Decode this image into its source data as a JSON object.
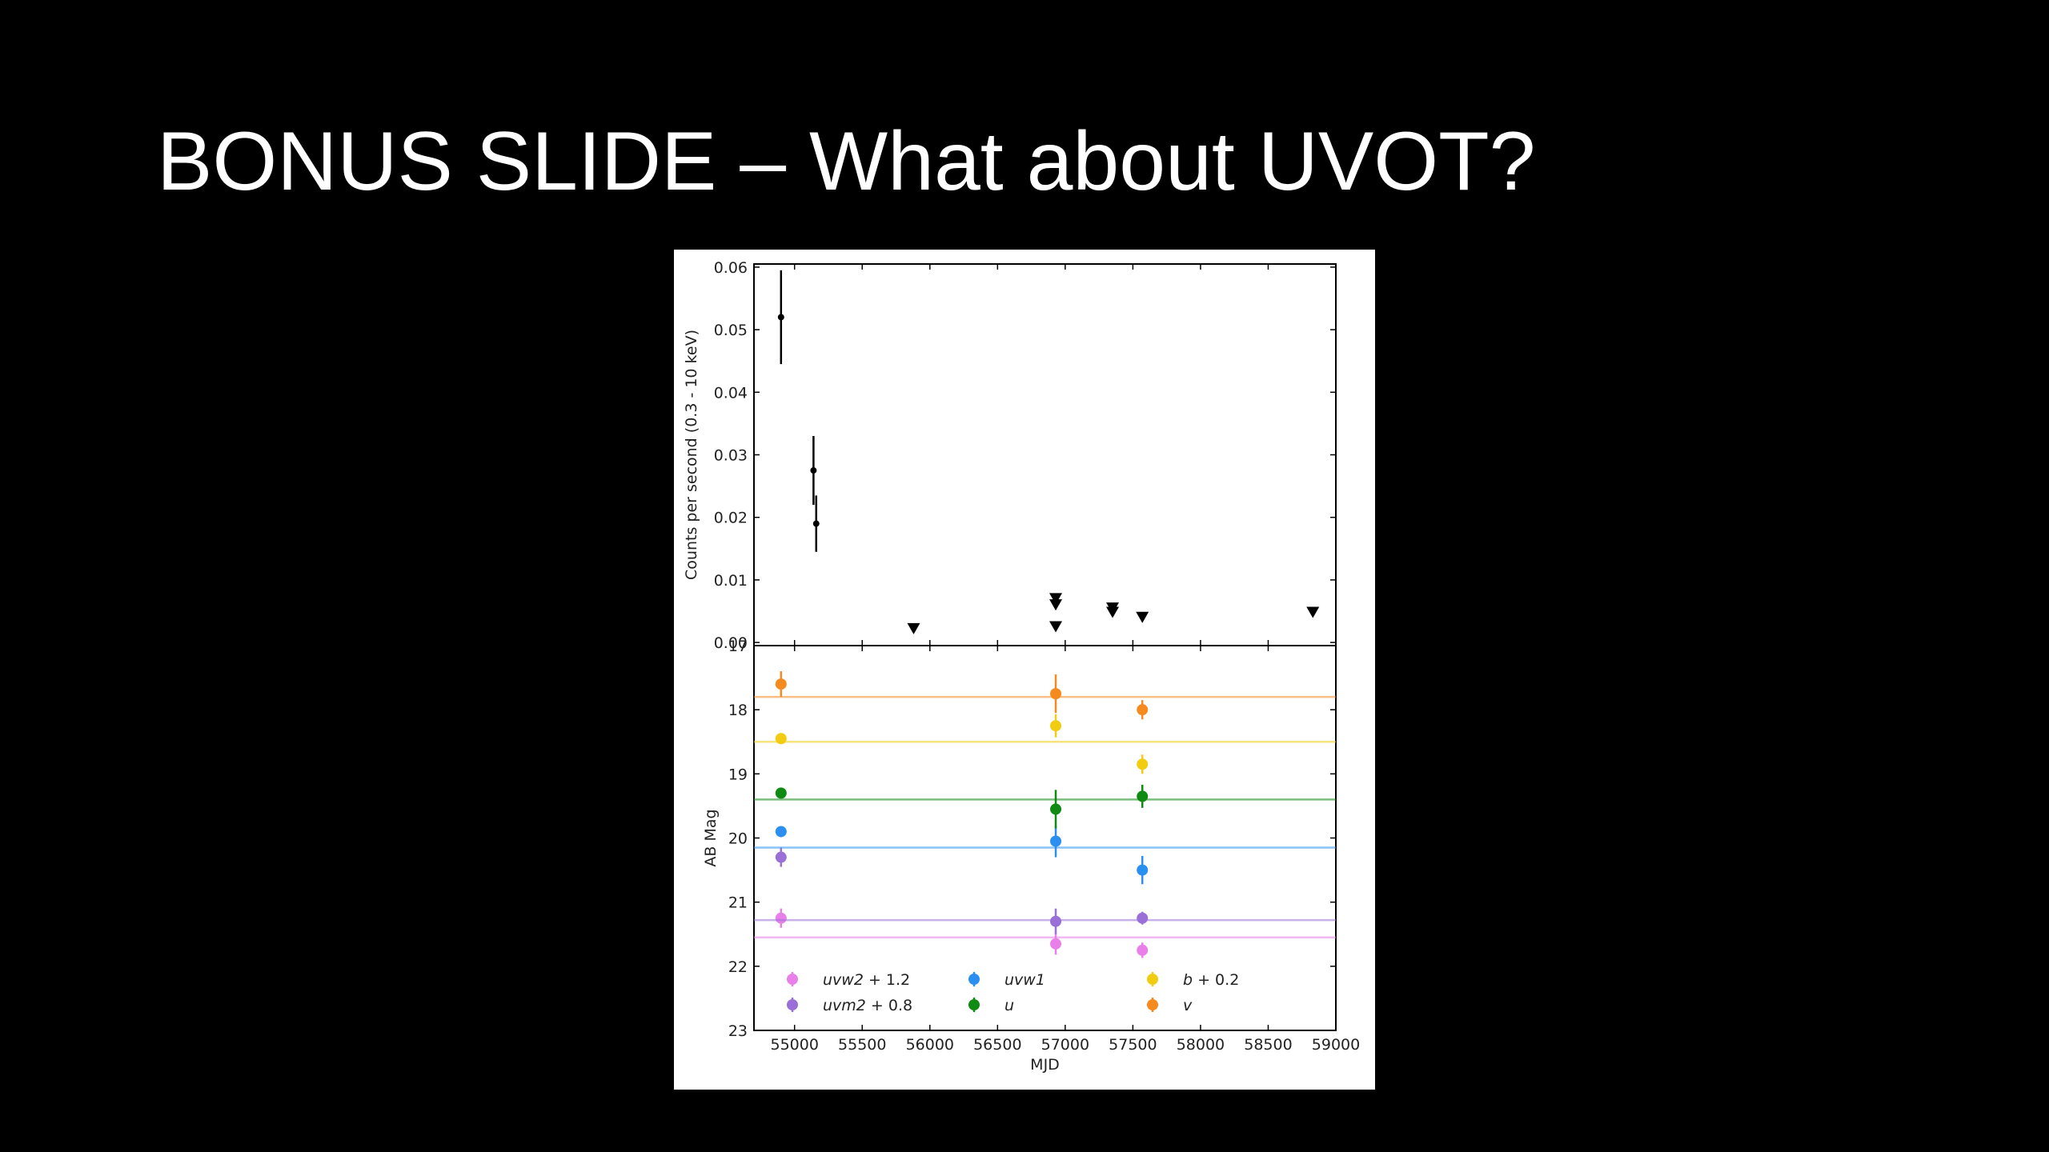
{
  "slide": {
    "title": "BONUS SLIDE – What about UVOT?"
  },
  "chart_data": [
    {
      "type": "scatter",
      "panel": "top",
      "title": "",
      "xlabel": "",
      "ylabel": "Counts per second (0.3 - 10 keV)",
      "xlim": [
        54700,
        59000
      ],
      "ylim": [
        -0.0005,
        0.0605
      ],
      "yticks": [
        "0.00",
        "0.01",
        "0.02",
        "0.03",
        "0.04",
        "0.05",
        "0.06"
      ],
      "grid": false,
      "detections": [
        {
          "x": 54900,
          "y": 0.052,
          "err": 0.0075
        },
        {
          "x": 55140,
          "y": 0.0275,
          "err": 0.0055
        },
        {
          "x": 55160,
          "y": 0.019,
          "err": 0.0045
        }
      ],
      "upper_limits": [
        {
          "x": 55880,
          "y": 0.0022
        },
        {
          "x": 56930,
          "y": 0.007
        },
        {
          "x": 56930,
          "y": 0.006
        },
        {
          "x": 56930,
          "y": 0.0025
        },
        {
          "x": 57350,
          "y": 0.0055
        },
        {
          "x": 57350,
          "y": 0.0048
        },
        {
          "x": 57570,
          "y": 0.004
        },
        {
          "x": 58830,
          "y": 0.0048
        }
      ],
      "colors": {
        "points": "#000000"
      }
    },
    {
      "type": "scatter",
      "panel": "bottom",
      "title": "",
      "xlabel": "MJD",
      "ylabel": "AB Mag",
      "xlim": [
        54700,
        59000
      ],
      "ylim": [
        23,
        17
      ],
      "y_inverted": true,
      "xticks": [
        "55000",
        "55500",
        "56000",
        "56500",
        "57000",
        "57500",
        "58000",
        "58500",
        "59000"
      ],
      "yticks": [
        "17",
        "18",
        "19",
        "20",
        "21",
        "22",
        "23"
      ],
      "grid": false,
      "legend": "lower-center",
      "series": [
        {
          "name": "uvw2 + 1.2",
          "label_italic": "uvw2",
          "label_suffix": " + 1.2",
          "color": "#e97fe9",
          "mean": 21.55,
          "points": [
            {
              "x": 54900,
              "y": 21.25,
              "err": 0.15
            },
            {
              "x": 56930,
              "y": 21.65,
              "err": 0.17
            },
            {
              "x": 57570,
              "y": 21.75,
              "err": 0.12
            }
          ]
        },
        {
          "name": "uvm2 + 0.8",
          "label_italic": "uvm2",
          "label_suffix": " + 0.8",
          "color": "#9a6fd8",
          "mean": 21.28,
          "points": [
            {
              "x": 54900,
              "y": 20.3,
              "err": 0.15
            },
            {
              "x": 56930,
              "y": 21.3,
              "err": 0.2
            },
            {
              "x": 57570,
              "y": 21.25,
              "err": 0.1
            }
          ]
        },
        {
          "name": "uvw1",
          "label_italic": "uvw1",
          "label_suffix": "",
          "color": "#2a8ff0",
          "mean": 20.15,
          "points": [
            {
              "x": 54900,
              "y": 19.9,
              "err": 0.08
            },
            {
              "x": 56930,
              "y": 20.05,
              "err": 0.25
            },
            {
              "x": 57570,
              "y": 20.5,
              "err": 0.22
            }
          ]
        },
        {
          "name": "u",
          "label_italic": "u",
          "label_suffix": "",
          "color": "#0f8a12",
          "mean": 19.4,
          "points": [
            {
              "x": 54900,
              "y": 19.3,
              "err": 0.08
            },
            {
              "x": 56930,
              "y": 19.55,
              "err": 0.3
            },
            {
              "x": 57570,
              "y": 19.35,
              "err": 0.18
            }
          ]
        },
        {
          "name": "b + 0.2",
          "label_italic": "b",
          "label_suffix": " + 0.2",
          "color": "#f2cc10",
          "mean": 18.5,
          "points": [
            {
              "x": 54900,
              "y": 18.45,
              "err": 0.08
            },
            {
              "x": 56930,
              "y": 18.25,
              "err": 0.18
            },
            {
              "x": 57570,
              "y": 18.85,
              "err": 0.15
            }
          ]
        },
        {
          "name": "v",
          "label_italic": "v",
          "label_suffix": "",
          "color": "#f58a1f",
          "mean": 17.8,
          "points": [
            {
              "x": 54900,
              "y": 17.6,
              "err": 0.2
            },
            {
              "x": 56930,
              "y": 17.75,
              "err": 0.3
            },
            {
              "x": 57570,
              "y": 18.0,
              "err": 0.15
            }
          ]
        }
      ]
    }
  ]
}
